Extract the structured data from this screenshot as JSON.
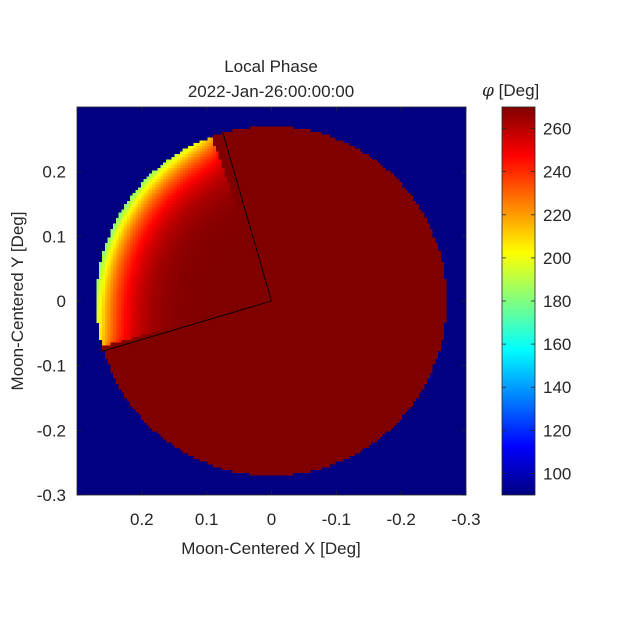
{
  "chart_data": {
    "type": "heatmap",
    "title": "Local Phase",
    "subtitle": "2022-Jan-26:00:00:00",
    "xlabel": "Moon-Centered X [Deg]",
    "ylabel": "Moon-Centered Y [Deg]",
    "x_reversed": true,
    "xlim": [
      0.3,
      -0.3
    ],
    "ylim": [
      -0.3,
      0.3
    ],
    "x_ticks": [
      0.2,
      0.1,
      0,
      -0.1,
      -0.2,
      -0.3
    ],
    "x_tick_labels": [
      "0.2",
      "0.1",
      "0",
      "-0.1",
      "-0.2",
      "-0.3"
    ],
    "y_ticks": [
      0.2,
      0.1,
      0,
      -0.1,
      -0.2,
      -0.3
    ],
    "y_tick_labels": [
      "0.2",
      "0.1",
      "0",
      "-0.1",
      "-0.2",
      "-0.3"
    ],
    "grid": false,
    "background_value": 90,
    "disk_radius_deg": 0.27,
    "night_value": 270,
    "terminator_limb_value": 180,
    "lit_wedge_deg_from_up_cw": [
      -20,
      -105
    ],
    "terminator_tips": [
      [
        0.075,
        0.26
      ],
      [
        -0.075,
        -0.26
      ]
    ],
    "wedge_edge_lines": [
      {
        "from": [
          0,
          0
        ],
        "to": [
          0.075,
          0.26
        ]
      },
      {
        "from": [
          0,
          0
        ],
        "to": [
          0.262,
          -0.078
        ]
      }
    ],
    "colorbar": {
      "label_symbol": "φ",
      "label_unit": " [Deg]",
      "colormap": "jet",
      "range": [
        90,
        270
      ],
      "ticks": [
        100,
        120,
        140,
        160,
        180,
        200,
        220,
        240,
        260
      ],
      "tick_labels": [
        "100",
        "120",
        "140",
        "160",
        "180",
        "200",
        "220",
        "240",
        "260"
      ]
    }
  }
}
